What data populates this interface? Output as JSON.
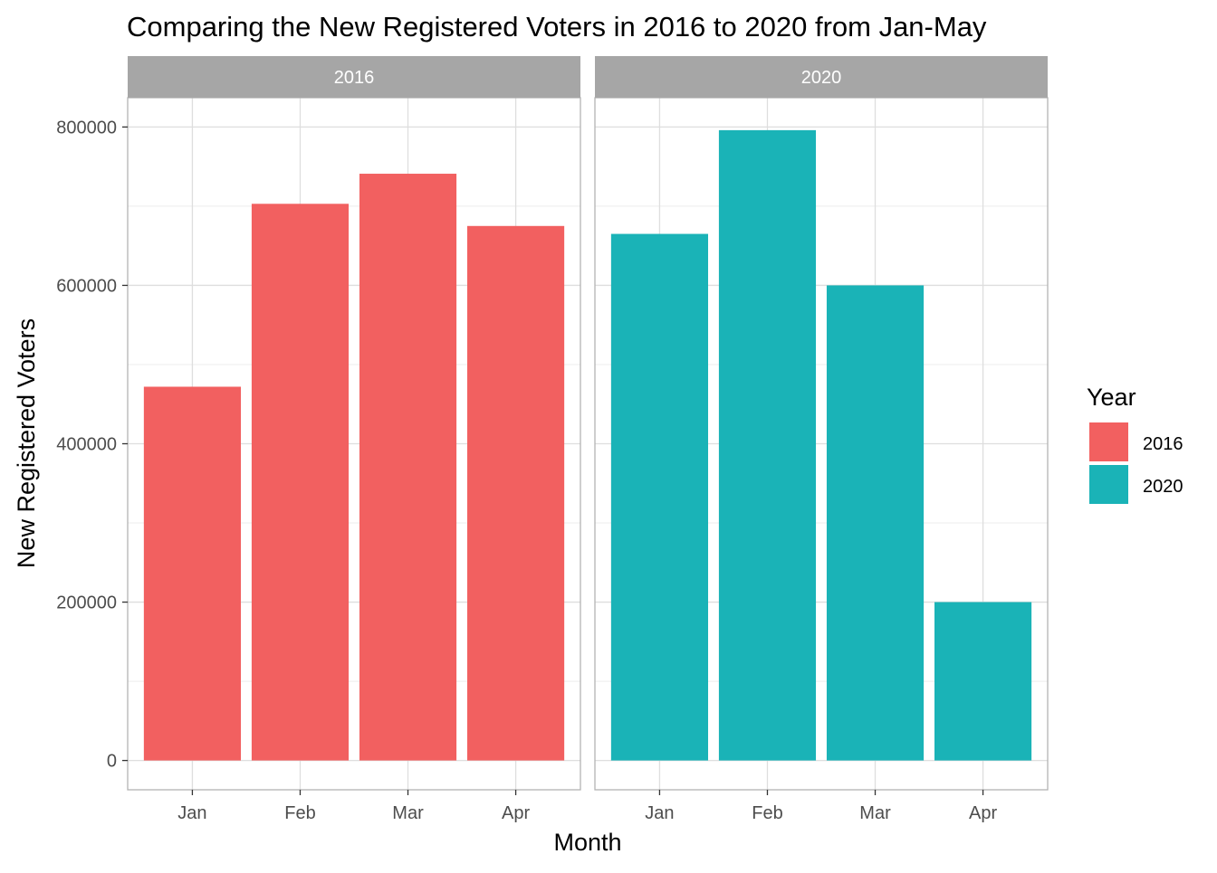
{
  "chart_data": {
    "type": "bar",
    "title": "Comparing the New Registered Voters in 2016 to 2020 from Jan-May",
    "xlabel": "Month",
    "ylabel": "New Registered Voters",
    "categories": [
      "Jan",
      "Feb",
      "Mar",
      "Apr"
    ],
    "ylim": [
      -37000,
      837000
    ],
    "yticks": [
      "0",
      "200000",
      "400000",
      "600000",
      "800000"
    ],
    "grid": true,
    "facets": [
      {
        "label": "2016",
        "series": "2016",
        "values": [
          472000,
          703000,
          741000,
          675000
        ]
      },
      {
        "label": "2020",
        "series": "2020",
        "values": [
          665000,
          796000,
          600000,
          200000
        ]
      }
    ],
    "legend": {
      "title": "Year",
      "placement": "right",
      "items": [
        {
          "label": "2016",
          "color": "#F26060"
        },
        {
          "label": "2020",
          "color": "#1AB3B7"
        }
      ]
    }
  },
  "colors": {
    "strip": "#A6A6A6",
    "panel_border": "#B3B3B3",
    "grid_major": "#DEDEDE",
    "grid_minor": "#EDEDED"
  }
}
